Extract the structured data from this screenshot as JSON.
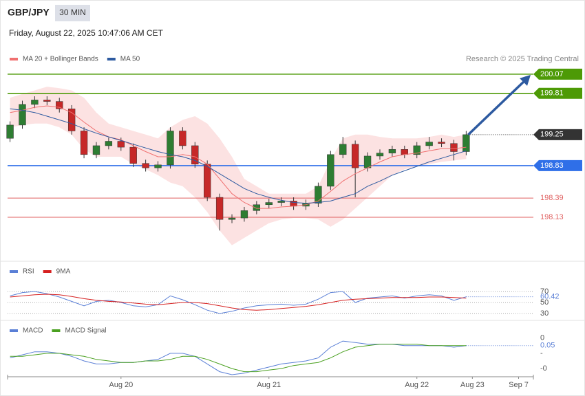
{
  "header": {
    "symbol": "GBP/JPY",
    "interval": "30 MIN",
    "datetime": "Friday, August 22, 2025 10:47:06 AM CET",
    "credit": "Research © 2025 Trading Central"
  },
  "chart_data": [
    {
      "type": "candlestick",
      "x": [
        6,
        8,
        10,
        12,
        14,
        16,
        18,
        20,
        22,
        24,
        26,
        28,
        30,
        32,
        34,
        36,
        38,
        40,
        42,
        44,
        46,
        48,
        50,
        52,
        54,
        56,
        58,
        60,
        62,
        64,
        66,
        68,
        70,
        72,
        74,
        76,
        78,
        80
      ],
      "xlim": [
        5.6,
        90.9
      ],
      "ylim": [
        197.58,
        200.19
      ],
      "up_color": "#2e7d32",
      "down_color": "#c62828",
      "open": [
        199.2,
        199.38,
        199.66,
        199.72,
        199.7,
        199.6,
        199.3,
        198.98,
        199.1,
        199.16,
        199.08,
        198.86,
        198.8,
        198.84,
        199.3,
        199.1,
        198.85,
        198.4,
        198.1,
        198.12,
        198.22,
        198.3,
        198.33,
        198.35,
        198.28,
        198.32,
        198.55,
        198.98,
        199.12,
        198.8,
        198.96,
        199.0,
        199.05,
        198.98,
        199.1,
        199.15,
        199.13,
        199.02
      ],
      "high": [
        199.43,
        199.71,
        199.77,
        199.77,
        199.75,
        199.65,
        199.35,
        199.15,
        199.21,
        199.21,
        199.13,
        198.91,
        198.89,
        199.35,
        199.35,
        199.15,
        198.9,
        198.45,
        198.17,
        198.27,
        198.35,
        198.38,
        198.4,
        198.4,
        198.37,
        198.6,
        199.03,
        199.22,
        199.17,
        199.01,
        199.05,
        199.1,
        199.1,
        199.15,
        199.22,
        199.2,
        199.18,
        199.3
      ],
      "low": [
        199.15,
        199.33,
        199.61,
        199.65,
        199.55,
        199.25,
        198.93,
        198.93,
        199.05,
        199.03,
        198.81,
        198.75,
        198.75,
        198.79,
        199.05,
        198.8,
        198.35,
        197.95,
        198.05,
        198.07,
        198.17,
        198.25,
        198.28,
        198.23,
        198.23,
        198.27,
        198.5,
        198.93,
        198.4,
        198.75,
        198.91,
        198.95,
        198.93,
        198.93,
        199.05,
        199.08,
        198.9,
        198.97
      ],
      "close": [
        199.38,
        199.66,
        199.72,
        199.7,
        199.6,
        199.3,
        198.98,
        199.1,
        199.16,
        199.08,
        198.86,
        198.8,
        198.84,
        199.3,
        199.1,
        198.85,
        198.4,
        198.1,
        198.12,
        198.22,
        198.3,
        198.33,
        198.35,
        198.28,
        198.32,
        198.55,
        198.98,
        199.12,
        198.8,
        198.96,
        199.0,
        199.05,
        198.98,
        199.1,
        199.15,
        199.13,
        199.02,
        199.25
      ],
      "series": [
        {
          "name": "MA 20 + Bollinger Bands",
          "color": "#f07070",
          "values": [
            199.55,
            199.58,
            199.62,
            199.64,
            199.62,
            199.55,
            199.42,
            199.3,
            199.22,
            199.18,
            199.1,
            199.02,
            198.95,
            198.95,
            198.98,
            198.95,
            198.85,
            198.65,
            198.45,
            198.33,
            198.25,
            198.25,
            198.27,
            198.28,
            198.3,
            198.35,
            198.48,
            198.62,
            198.72,
            198.8,
            198.88,
            198.95,
            198.98,
            199.0,
            199.03,
            199.06,
            199.06,
            199.08
          ],
          "upper": [
            199.75,
            199.8,
            199.85,
            199.9,
            199.88,
            199.85,
            199.75,
            199.55,
            199.4,
            199.35,
            199.3,
            199.25,
            199.2,
            199.35,
            199.45,
            199.5,
            199.4,
            199.2,
            198.95,
            198.65,
            198.55,
            198.45,
            198.45,
            198.45,
            198.45,
            198.55,
            198.9,
            199.2,
            199.25,
            199.25,
            199.22,
            199.2,
            199.2,
            199.2,
            199.22,
            199.25,
            199.22,
            199.25
          ],
          "lower": [
            199.35,
            199.38,
            199.4,
            199.4,
            199.35,
            199.25,
            199.05,
            198.95,
            198.95,
            198.95,
            198.85,
            198.78,
            198.7,
            198.6,
            198.55,
            198.4,
            198.2,
            197.95,
            197.75,
            197.85,
            197.95,
            198.05,
            198.1,
            198.12,
            198.12,
            198.1,
            198.0,
            198.1,
            198.25,
            198.4,
            198.55,
            198.7,
            198.78,
            198.82,
            198.85,
            198.88,
            198.9,
            198.92
          ]
        },
        {
          "name": "MA 50",
          "color": "#2d5aa0",
          "values": [
            199.6,
            199.58,
            199.55,
            199.5,
            199.45,
            199.4,
            199.33,
            199.27,
            199.22,
            199.17,
            199.12,
            199.07,
            199.02,
            198.98,
            198.95,
            198.9,
            198.82,
            198.72,
            198.62,
            198.52,
            198.45,
            198.4,
            198.36,
            198.33,
            198.32,
            198.33,
            198.35,
            198.4,
            198.45,
            198.55,
            198.62,
            198.7,
            198.76,
            198.82,
            198.88,
            198.93,
            198.98,
            199.03
          ]
        }
      ],
      "levels": [
        {
          "value": 200.07,
          "color": "#4d9a06",
          "boxed": true,
          "dotted": false
        },
        {
          "value": 199.81,
          "color": "#4d9a06",
          "boxed": true,
          "dotted": false
        },
        {
          "value": 199.25,
          "color": "#333333",
          "boxed": true,
          "dotted": true
        },
        {
          "value": 198.83,
          "color": "#2f6fe8",
          "boxed": true,
          "dotted": false
        },
        {
          "value": 198.39,
          "color": "#e06060",
          "boxed": false,
          "dotted": false
        },
        {
          "value": 198.13,
          "color": "#e06060",
          "boxed": false,
          "dotted": false
        }
      ]
    },
    {
      "type": "line",
      "x": [
        6,
        8,
        10,
        12,
        14,
        16,
        18,
        20,
        22,
        24,
        26,
        28,
        30,
        32,
        34,
        36,
        38,
        40,
        42,
        44,
        46,
        48,
        50,
        52,
        54,
        56,
        58,
        60,
        62,
        64,
        66,
        68,
        70,
        72,
        74,
        76,
        78,
        80
      ],
      "xlim": [
        5.6,
        90.9
      ],
      "ylim": [
        18.75,
        93.75
      ],
      "yticks": [
        30,
        50,
        70
      ],
      "grid": true,
      "series": [
        {
          "name": "RSI",
          "color": "#5a7fd6",
          "values": [
            62,
            68,
            70,
            66,
            60,
            52,
            44,
            52,
            54,
            50,
            44,
            42,
            46,
            62,
            55,
            46,
            36,
            30,
            34,
            40,
            44,
            46,
            47,
            45,
            47,
            56,
            68,
            70,
            50,
            58,
            60,
            62,
            58,
            62,
            64,
            62,
            54,
            60.42
          ]
        },
        {
          "name": "9MA",
          "color": "#d62020",
          "values": [
            60,
            62,
            64,
            65,
            64,
            61,
            57,
            54,
            52,
            51,
            49,
            47,
            46,
            48,
            50,
            50,
            48,
            44,
            40,
            37,
            36,
            37,
            39,
            41,
            43,
            46,
            50,
            54,
            56,
            57,
            58,
            59,
            59,
            59,
            60,
            60,
            59,
            58
          ]
        }
      ]
    },
    {
      "type": "line",
      "x": [
        6,
        8,
        10,
        12,
        14,
        16,
        18,
        20,
        22,
        24,
        26,
        28,
        30,
        32,
        34,
        36,
        38,
        40,
        42,
        44,
        46,
        48,
        50,
        52,
        54,
        56,
        58,
        60,
        62,
        64,
        66,
        68,
        70,
        72,
        74,
        76,
        78,
        80
      ],
      "xlim": [
        5.6,
        90.9
      ],
      "ylim": [
        -0.14,
        0.13
      ],
      "yticks": [
        {
          "value": 0.1,
          "label": "0"
        },
        {
          "value": 0.0,
          "label": "-"
        },
        {
          "value": -0.1,
          "label": "-0"
        }
      ],
      "xticks": [
        {
          "value": 24,
          "label": "Aug 20"
        },
        {
          "value": 48,
          "label": "Aug 21"
        },
        {
          "value": 72,
          "label": "Aug 22"
        },
        {
          "value": 81,
          "label": "Aug 23"
        },
        {
          "value": 88.5,
          "label": "Sep 7"
        }
      ],
      "grid": false,
      "series": [
        {
          "name": "MACD",
          "color": "#5a7fd6",
          "values": [
            -0.03,
            -0.01,
            0.01,
            0.01,
            0.0,
            -0.02,
            -0.05,
            -0.07,
            -0.07,
            -0.06,
            -0.06,
            -0.05,
            -0.04,
            0.0,
            0.0,
            -0.02,
            -0.07,
            -0.12,
            -0.14,
            -0.13,
            -0.11,
            -0.09,
            -0.07,
            -0.06,
            -0.05,
            -0.03,
            0.04,
            0.08,
            0.07,
            0.06,
            0.06,
            0.06,
            0.05,
            0.05,
            0.05,
            0.05,
            0.04,
            0.05
          ]
        },
        {
          "name": "MACD Signal",
          "color": "#4aa020",
          "values": [
            -0.02,
            -0.02,
            -0.01,
            0.0,
            0.0,
            -0.01,
            -0.02,
            -0.04,
            -0.05,
            -0.06,
            -0.06,
            -0.05,
            -0.05,
            -0.04,
            -0.02,
            -0.02,
            -0.04,
            -0.07,
            -0.1,
            -0.12,
            -0.12,
            -0.11,
            -0.1,
            -0.08,
            -0.07,
            -0.06,
            -0.03,
            0.01,
            0.04,
            0.05,
            0.06,
            0.06,
            0.06,
            0.06,
            0.05,
            0.05,
            0.05,
            0.05
          ]
        }
      ]
    }
  ]
}
